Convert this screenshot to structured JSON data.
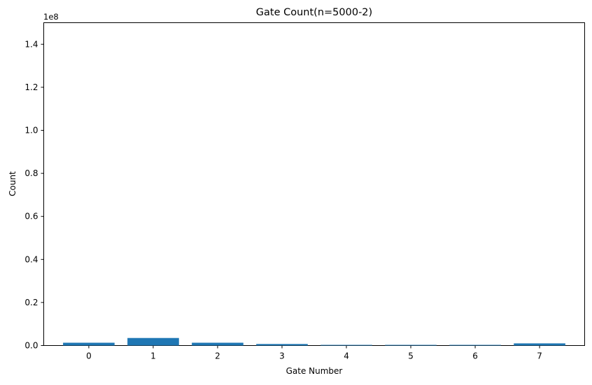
{
  "chart_data": {
    "type": "bar",
    "title": "Gate Count(n=5000-2)",
    "xlabel": "Gate Number",
    "ylabel": "Count",
    "scale_label": "1e8",
    "categories": [
      "0",
      "1",
      "2",
      "3",
      "4",
      "5",
      "6",
      "7"
    ],
    "values": [
      1300000,
      3500000,
      1300000,
      700000,
      300000,
      300000,
      300000,
      1000000
    ],
    "ylim": [
      0,
      150000000
    ],
    "yticks": [
      {
        "value": 0,
        "label": "0.0"
      },
      {
        "value": 20000000,
        "label": "0.2"
      },
      {
        "value": 40000000,
        "label": "0.4"
      },
      {
        "value": 60000000,
        "label": "0.6"
      },
      {
        "value": 80000000,
        "label": "0.8"
      },
      {
        "value": 100000000,
        "label": "1.0"
      },
      {
        "value": 120000000,
        "label": "1.2"
      },
      {
        "value": 140000000,
        "label": "1.4"
      }
    ],
    "bar_color": "#1f77b4",
    "grid": false,
    "legend": "none"
  }
}
